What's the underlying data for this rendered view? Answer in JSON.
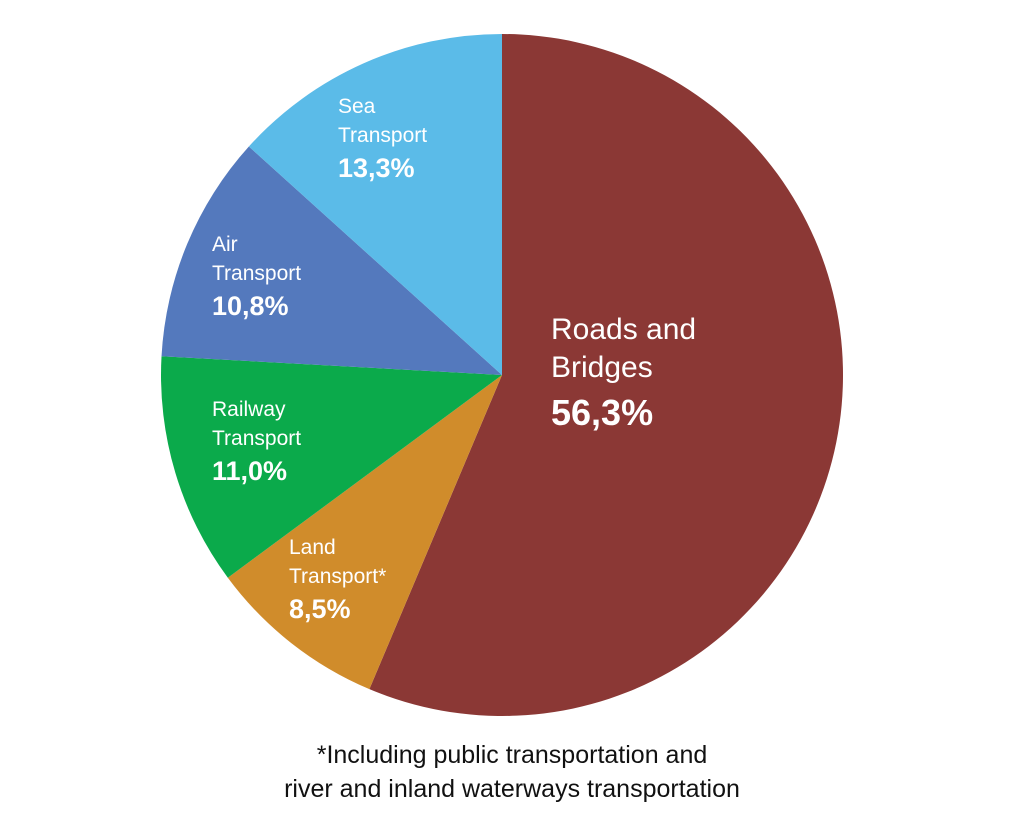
{
  "chart_data": {
    "type": "pie",
    "slices": [
      {
        "label_lines": [
          "Roads and",
          "Bridges"
        ],
        "value": 56.3,
        "value_label": "56,3%",
        "color": "#8B3835"
      },
      {
        "label_lines": [
          "Land",
          "Transport*"
        ],
        "value": 8.5,
        "value_label": "8,5%",
        "color": "#D08C2B"
      },
      {
        "label_lines": [
          "Railway",
          "Transport"
        ],
        "value": 11.0,
        "value_label": "11,0%",
        "color": "#0BAA4B"
      },
      {
        "label_lines": [
          "Air",
          "Transport"
        ],
        "value": 10.8,
        "value_label": "10,8%",
        "color": "#5479BD"
      },
      {
        "label_lines": [
          "Sea",
          "Transport"
        ],
        "value": 13.3,
        "value_label": "13,3%",
        "color": "#5BBBE8"
      }
    ],
    "direction": "clockwise",
    "start": "top",
    "legend": "none"
  },
  "footnote": {
    "line1": "*Including public transportation and",
    "line2": "river and inland waterways transportation"
  }
}
